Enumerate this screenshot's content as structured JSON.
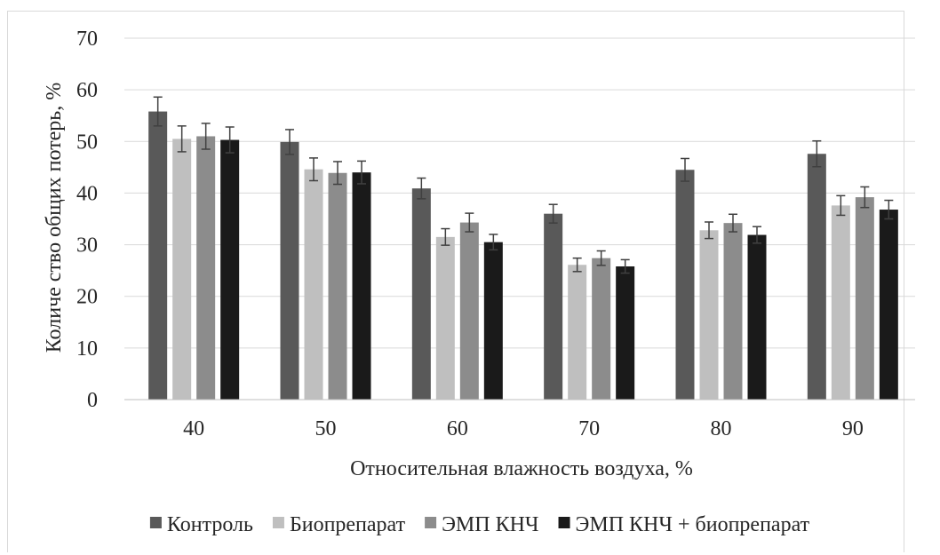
{
  "chart_data": {
    "type": "bar",
    "title": "",
    "xlabel": "Относительная влажность воздуха, %",
    "ylabel": "Количе ство общих потерь, %",
    "categories": [
      "40",
      "50",
      "60",
      "70",
      "80",
      "90"
    ],
    "ylim": [
      0,
      70
    ],
    "yticks": [
      0,
      10,
      20,
      30,
      40,
      50,
      60,
      70
    ],
    "grid": true,
    "legend_position": "bottom",
    "error_bars": true,
    "series": [
      {
        "name": "Контроль",
        "color": "#595959",
        "values": [
          55.8,
          49.9,
          40.9,
          36.0,
          44.5,
          47.6
        ],
        "errors": [
          2.8,
          2.4,
          2.0,
          1.8,
          2.2,
          2.5
        ]
      },
      {
        "name": "Биопрепарат",
        "color": "#bfbfbf",
        "values": [
          50.5,
          44.6,
          31.5,
          26.1,
          32.8,
          37.6
        ],
        "errors": [
          2.5,
          2.2,
          1.6,
          1.3,
          1.6,
          1.9
        ]
      },
      {
        "name": "ЭМП КНЧ",
        "color": "#8c8c8c",
        "values": [
          51.0,
          43.9,
          34.3,
          27.4,
          34.2,
          39.2
        ],
        "errors": [
          2.5,
          2.2,
          1.8,
          1.4,
          1.7,
          2.0
        ]
      },
      {
        "name": "ЭМП КНЧ + биопрепарат",
        "color": "#1a1a1a",
        "values": [
          50.3,
          44.0,
          30.5,
          25.8,
          31.9,
          36.8
        ],
        "errors": [
          2.5,
          2.2,
          1.5,
          1.3,
          1.6,
          1.8
        ]
      }
    ]
  }
}
